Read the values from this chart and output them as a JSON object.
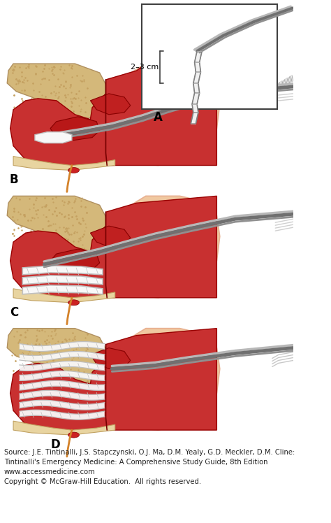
{
  "figure_width": 4.74,
  "figure_height": 7.48,
  "dpi": 100,
  "background_color": "#ffffff",
  "source_text": "Source: J.E. Tintinalli, J.S. Stapczynski, O.J. Ma, D.M. Yealy, G.D. Meckler, D.M. Cline:\nTintinalli's Emergency Medicine: A Comprehensive Study Guide, 8th Edition\nwww.accessmedicine.com\nCopyright © McGraw-Hill Education.  All rights reserved.",
  "source_fontsize": 7.2,
  "label_A": "A",
  "label_B": "B",
  "label_C": "C",
  "label_D": "D",
  "label_fontsize": 12,
  "annotation_2_3cm": "2–3 cm",
  "skin_pink": "#f0c8a0",
  "skin_light": "#f5dfc0",
  "face_pink": "#e8b090",
  "mucosa_red": "#c83030",
  "mucosa_light": "#e06060",
  "dark_red": "#8b1a1a",
  "bone_tan": "#d4b87a",
  "bone_light": "#e8d4a0",
  "stipple_color": "#c4a060",
  "tool_dark": "#707070",
  "tool_mid": "#909090",
  "tool_light": "#b8b8b8",
  "gauze_white": "#f8f8f8",
  "gauze_gray": "#c0c0c0",
  "blood_red": "#cc2222",
  "blood_orange": "#d4822a",
  "line_dark": "#404040"
}
